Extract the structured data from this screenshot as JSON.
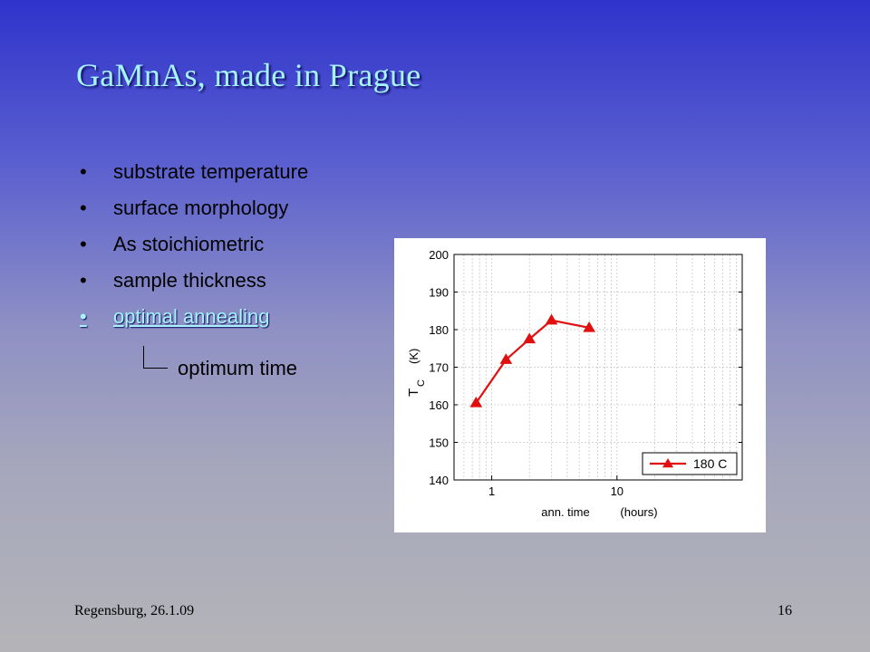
{
  "slide": {
    "title": "GaMnAs, made in Prague",
    "bullets": [
      {
        "text": "substrate temperature",
        "active": false
      },
      {
        "text": "surface morphology",
        "active": false
      },
      {
        "text": "As stoichiometric",
        "active": false
      },
      {
        "text": "sample thickness",
        "active": false
      },
      {
        "text": "optimal annealing",
        "active": true
      }
    ],
    "bullet_char": "•",
    "subnote": "optimum time",
    "footer_left": "Regensburg, 26.1.09",
    "page_number": "16",
    "colors": {
      "title": "#a6f4ff",
      "background_top": "#2f33cc",
      "background_bottom": "#b4b4b8"
    }
  },
  "chart_data": {
    "type": "line",
    "x_scale": "log",
    "xlim": [
      0.5,
      100
    ],
    "ylim": [
      140,
      200
    ],
    "yticks": [
      140,
      150,
      160,
      170,
      180,
      190,
      200
    ],
    "xticks": [
      1,
      10
    ],
    "xtick_labels": [
      "1",
      "10"
    ],
    "xlabel_parts": [
      "ann. time",
      "(hours)"
    ],
    "ylabel_main": "T",
    "ylabel_sub": "C",
    "ylabel_unit": "(K)",
    "grid": true,
    "legend_position": "bottom-right",
    "series": [
      {
        "name": "180 C",
        "color": "#e01010",
        "marker": "triangle",
        "x": [
          0.75,
          1.3,
          2.0,
          3.0,
          6.0
        ],
        "y": [
          160.5,
          172,
          177.5,
          182.5,
          180.5
        ]
      }
    ]
  }
}
